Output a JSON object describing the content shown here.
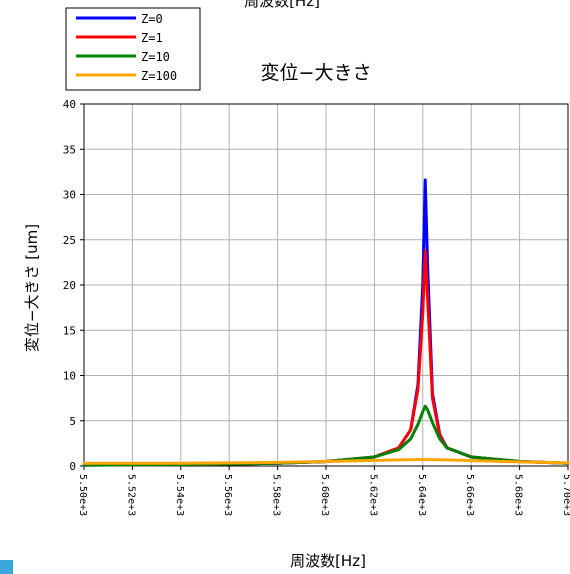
{
  "top_label": "周波数[Hz]",
  "chart_data": {
    "type": "line",
    "title": "変位−大きさ",
    "xlabel": "周波数[Hz]",
    "ylabel": "変位−大きさ [um]",
    "xlim": [
      5500,
      5700
    ],
    "ylim": [
      0,
      40
    ],
    "x_ticks": [
      5500,
      5520,
      5540,
      5560,
      5580,
      5600,
      5620,
      5640,
      5660,
      5680,
      5700
    ],
    "x_tick_labels": [
      "5.50e+3",
      "5.52e+3",
      "5.54e+3",
      "5.56e+3",
      "5.58e+3",
      "5.60e+3",
      "5.62e+3",
      "5.64e+3",
      "5.66e+3",
      "5.68e+3",
      "5.70e+3"
    ],
    "y_ticks": [
      0,
      5,
      10,
      15,
      20,
      25,
      30,
      35,
      40
    ],
    "y_tick_labels": [
      "0",
      "5",
      "10",
      "15",
      "20",
      "25",
      "30",
      "35",
      "40"
    ],
    "grid": true,
    "legend_position": "top-left",
    "series": [
      {
        "name": "Z=0",
        "color": "#0000ff",
        "x": [
          5500,
          5540,
          5580,
          5600,
          5620,
          5630,
          5635,
          5638,
          5640,
          5641,
          5642,
          5644,
          5647,
          5650,
          5660,
          5680,
          5700
        ],
        "y": [
          0.1,
          0.15,
          0.3,
          0.5,
          1.0,
          2.0,
          4.0,
          9.0,
          20.0,
          31.6,
          22.0,
          8.0,
          3.5,
          2.0,
          1.0,
          0.5,
          0.3
        ]
      },
      {
        "name": "Z=1",
        "color": "#ff0000",
        "x": [
          5500,
          5540,
          5580,
          5600,
          5620,
          5630,
          5635,
          5638,
          5640,
          5641,
          5642,
          5644,
          5647,
          5650,
          5660,
          5680,
          5700
        ],
        "y": [
          0.1,
          0.15,
          0.3,
          0.5,
          1.0,
          2.0,
          4.0,
          8.5,
          17.0,
          23.8,
          18.5,
          7.5,
          3.4,
          2.0,
          1.0,
          0.5,
          0.3
        ]
      },
      {
        "name": "Z=10",
        "color": "#008000",
        "x": [
          5500,
          5540,
          5580,
          5600,
          5620,
          5630,
          5635,
          5638,
          5640,
          5641,
          5642,
          5644,
          5647,
          5650,
          5660,
          5680,
          5700
        ],
        "y": [
          0.1,
          0.15,
          0.3,
          0.5,
          1.0,
          1.8,
          3.0,
          4.6,
          6.0,
          6.6,
          6.2,
          4.8,
          3.0,
          2.0,
          1.0,
          0.5,
          0.3
        ]
      },
      {
        "name": "Z=100",
        "color": "#ffa500",
        "x": [
          5500,
          5540,
          5580,
          5600,
          5620,
          5630,
          5640,
          5650,
          5660,
          5680,
          5700
        ],
        "y": [
          0.3,
          0.3,
          0.4,
          0.5,
          0.62,
          0.68,
          0.72,
          0.68,
          0.6,
          0.45,
          0.35
        ]
      }
    ]
  }
}
